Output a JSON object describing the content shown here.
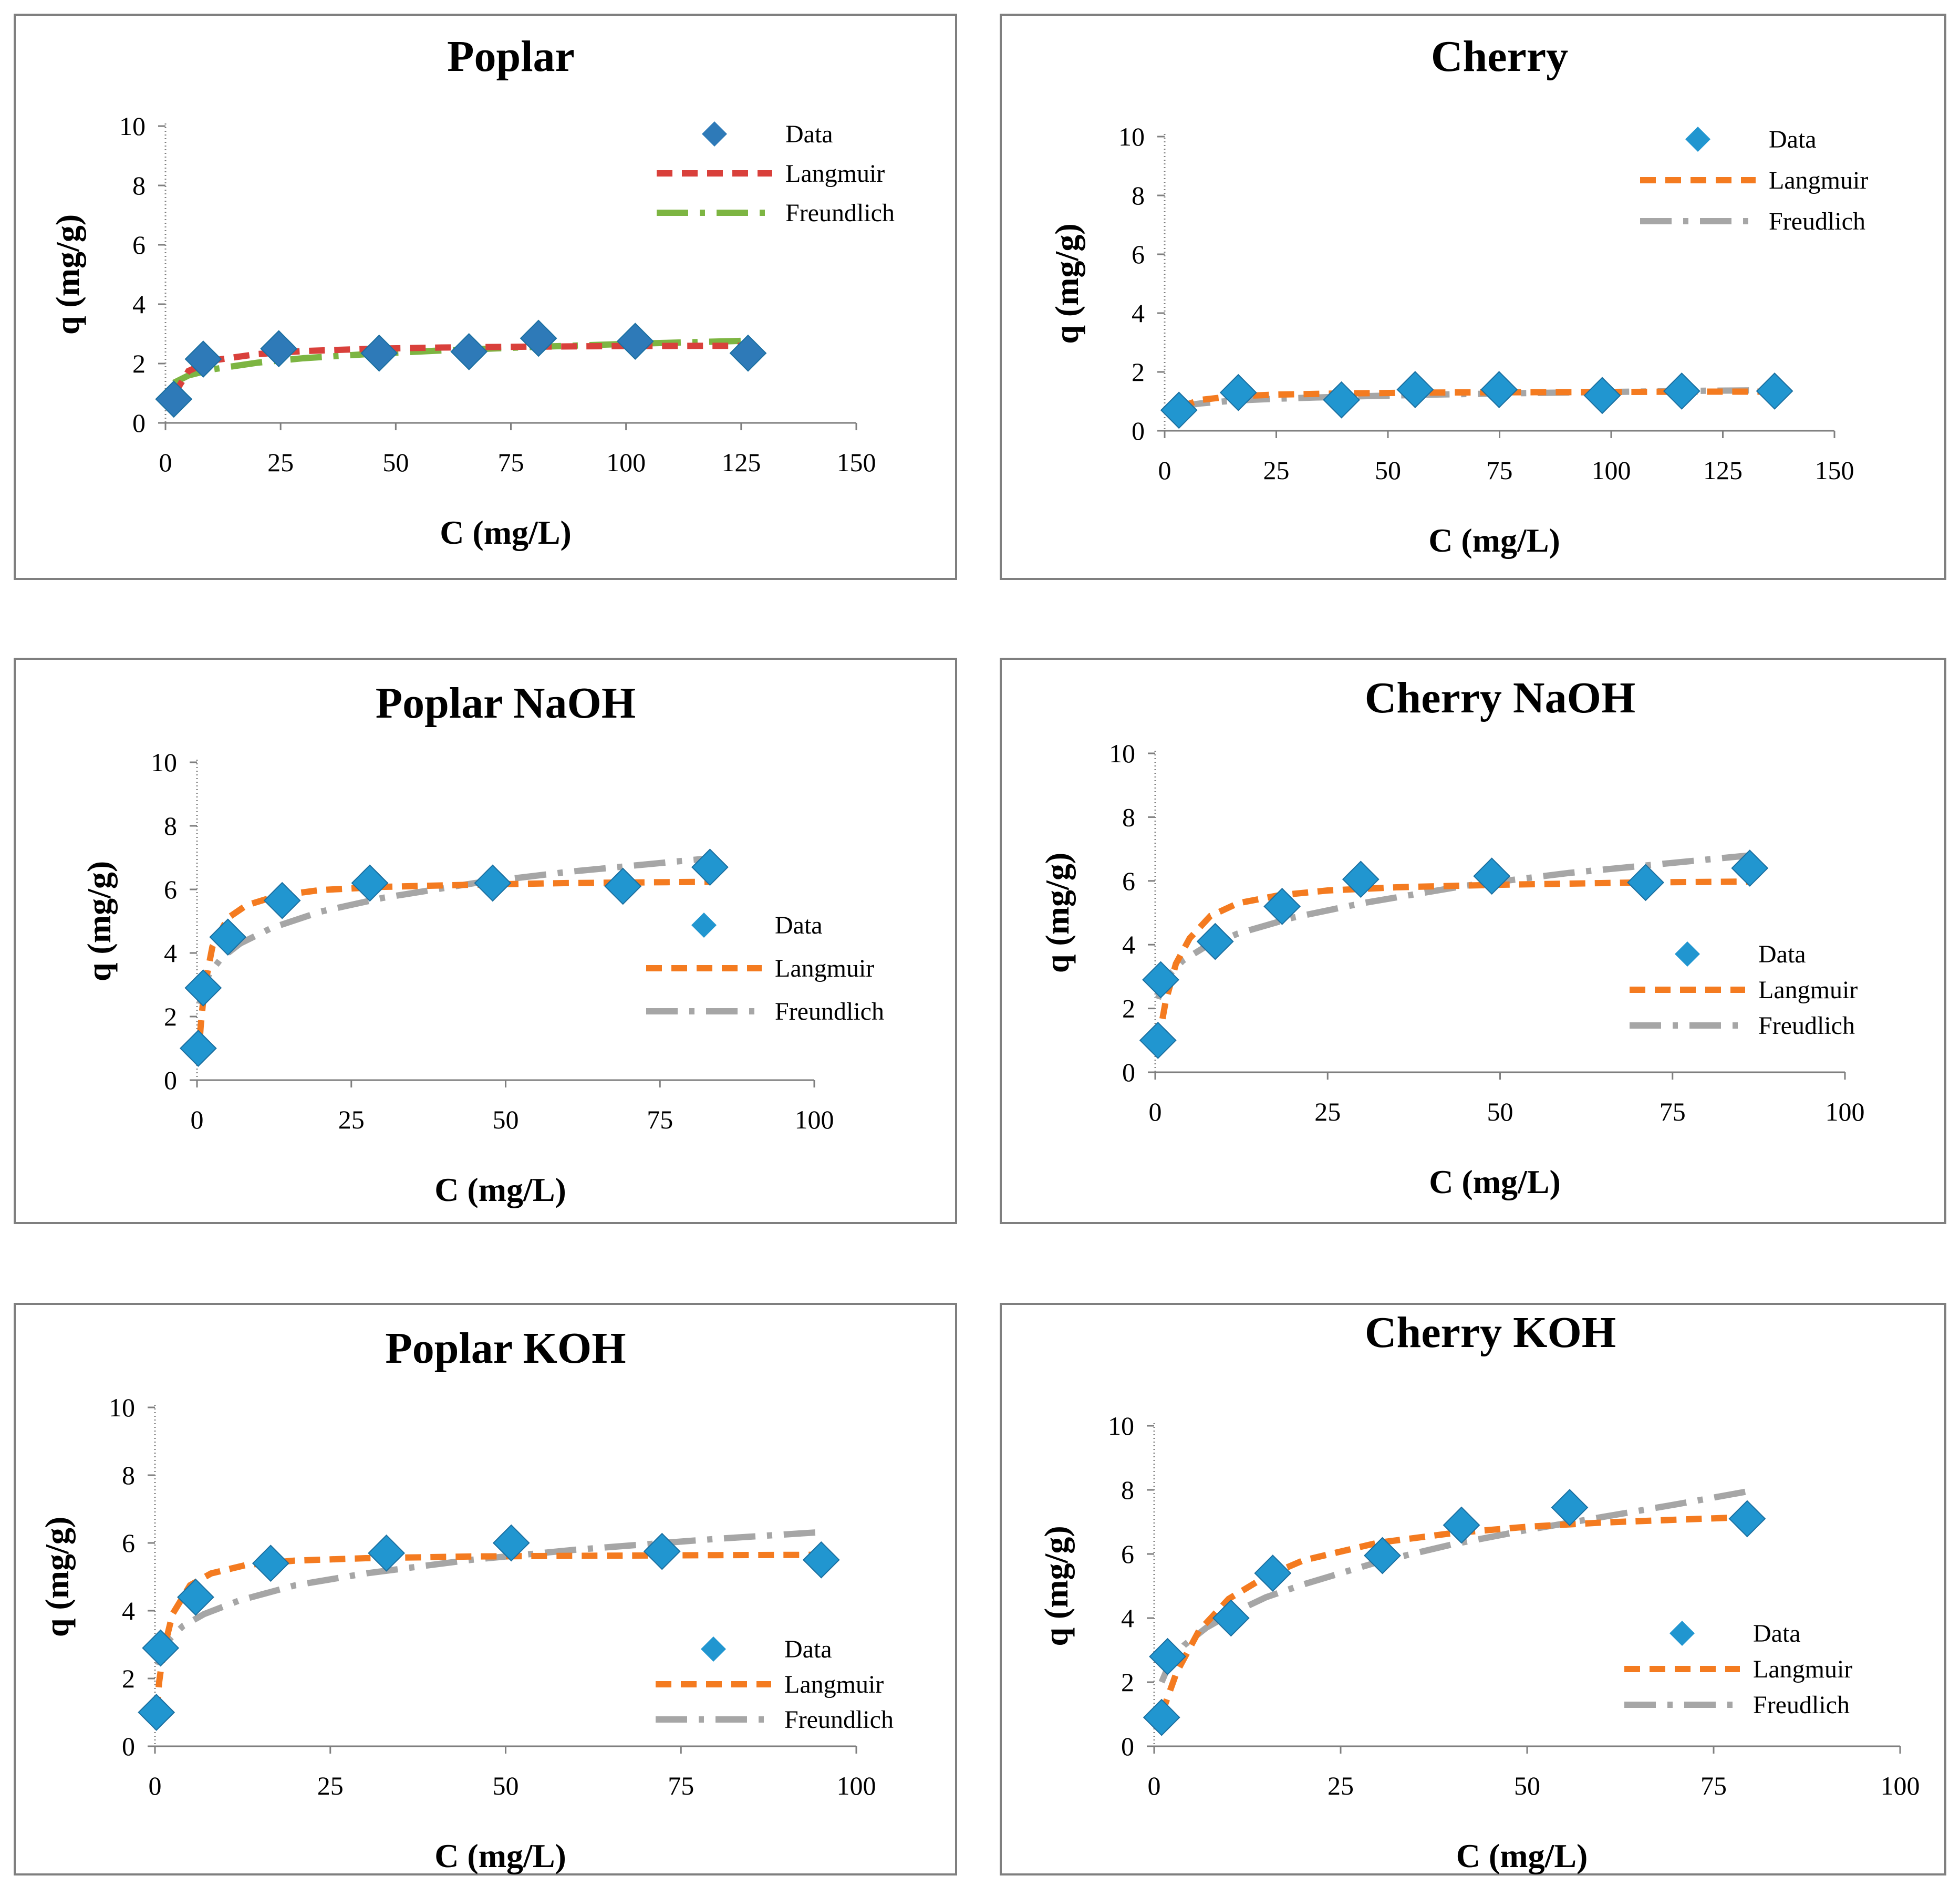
{
  "colors": {
    "data_marker": "#2196d0",
    "data_marker_dark": "#2e7ab8",
    "orange": "#f47b20",
    "gray": "#a6a6a6",
    "red": "#d9403b",
    "green": "#7db542",
    "frame": "#7f7f7f"
  },
  "chart_data": [
    {
      "id": "poplar",
      "type": "scatter",
      "title": "Poplar",
      "xlabel": "C (mg/L)",
      "ylabel": "q (mg/g)",
      "xlim": [
        0,
        150
      ],
      "ylim": [
        0,
        10
      ],
      "x_ticks": [
        "0",
        "25",
        "50",
        "75",
        "100",
        "125",
        "150"
      ],
      "y_ticks": [
        "0",
        "2",
        "4",
        "6",
        "8",
        "10"
      ],
      "legend": [
        "Data",
        "Langmuir",
        "Freundlich"
      ],
      "marker_color": "#2e7ab8",
      "langmuir_color": "#d9403b",
      "freundlich_color": "#7db542",
      "data": {
        "x": [
          1.8,
          8.2,
          24.6,
          46.4,
          65.9,
          81.0,
          102.0,
          126.5
        ],
        "y": [
          0.8,
          2.15,
          2.5,
          2.35,
          2.4,
          2.85,
          2.75,
          2.35
        ]
      },
      "langmuir": {
        "x": [
          1.8,
          5,
          10,
          20,
          30,
          45,
          60,
          80,
          100,
          126.5
        ],
        "y": [
          0.95,
          1.75,
          2.1,
          2.32,
          2.42,
          2.5,
          2.54,
          2.57,
          2.59,
          2.6
        ]
      },
      "freundlich": {
        "x": [
          1.8,
          5,
          10,
          20,
          30,
          45,
          60,
          80,
          100,
          126.5
        ],
        "y": [
          1.35,
          1.6,
          1.8,
          2.03,
          2.18,
          2.33,
          2.44,
          2.56,
          2.66,
          2.77
        ]
      }
    },
    {
      "id": "cherry",
      "type": "scatter",
      "title": "Cherry",
      "xlabel": "C (mg/L)",
      "ylabel": "q (mg/g)",
      "xlim": [
        0,
        150
      ],
      "ylim": [
        0,
        10
      ],
      "x_ticks": [
        "0",
        "25",
        "50",
        "75",
        "100",
        "125",
        "150"
      ],
      "y_ticks": [
        "0",
        "2",
        "4",
        "6",
        "8",
        "10"
      ],
      "legend": [
        "Data",
        "Langmuir",
        "Freudlich"
      ],
      "marker_color": "#2196d0",
      "langmuir_color": "#f47b20",
      "freundlich_color": "#a6a6a6",
      "data": {
        "x": [
          3.2,
          16.5,
          39.6,
          56.1,
          74.9,
          98.0,
          115.8,
          136.6
        ],
        "y": [
          0.7,
          1.3,
          1.05,
          1.4,
          1.4,
          1.2,
          1.35,
          1.35
        ]
      },
      "langmuir": {
        "x": [
          3.2,
          8,
          15,
          25,
          40,
          60,
          80,
          100,
          120,
          136.6
        ],
        "y": [
          0.8,
          1.05,
          1.17,
          1.23,
          1.27,
          1.3,
          1.31,
          1.32,
          1.33,
          1.33
        ]
      },
      "freundlich": {
        "x": [
          3.2,
          8,
          15,
          25,
          40,
          60,
          80,
          100,
          120,
          136.6
        ],
        "y": [
          0.82,
          0.93,
          1.02,
          1.09,
          1.16,
          1.23,
          1.28,
          1.32,
          1.36,
          1.38
        ]
      }
    },
    {
      "id": "poplar-naoh",
      "type": "scatter",
      "title": "Poplar NaOH",
      "xlabel": "C (mg/L)",
      "ylabel": "q (mg/g)",
      "xlim": [
        0,
        100
      ],
      "ylim": [
        0,
        10
      ],
      "x_ticks": [
        "0",
        "25",
        "50",
        "75",
        "100"
      ],
      "y_ticks": [
        "0",
        "2",
        "4",
        "6",
        "8",
        "10"
      ],
      "legend": [
        "Data",
        "Langmuir",
        "Freundlich"
      ],
      "marker_color": "#2196d0",
      "langmuir_color": "#f47b20",
      "freundlich_color": "#a6a6a6",
      "data": {
        "x": [
          0.2,
          1.0,
          5.0,
          13.8,
          28.0,
          47.9,
          69.0,
          83.1
        ],
        "y": [
          1.0,
          2.9,
          4.5,
          5.65,
          6.2,
          6.2,
          6.1,
          6.7
        ]
      },
      "langmuir": {
        "x": [
          0.2,
          0.6,
          1.2,
          2.5,
          5,
          8,
          13,
          20,
          30,
          45,
          60,
          83.1
        ],
        "y": [
          0.6,
          1.7,
          2.9,
          4.2,
          5.1,
          5.5,
          5.8,
          5.98,
          6.08,
          6.15,
          6.2,
          6.24
        ]
      },
      "freundlich": {
        "x": [
          0.4,
          1,
          2,
          4,
          7,
          12,
          20,
          30,
          45,
          60,
          83.1
        ],
        "y": [
          2.4,
          2.92,
          3.35,
          3.85,
          4.3,
          4.78,
          5.3,
          5.73,
          6.2,
          6.55,
          6.98
        ]
      }
    },
    {
      "id": "cherry-naoh",
      "type": "scatter",
      "title": "Cherry NaOH",
      "xlabel": "C (mg/L)",
      "ylabel": "q (mg/g)",
      "xlim": [
        0,
        100
      ],
      "ylim": [
        0,
        10
      ],
      "x_ticks": [
        "0",
        "25",
        "50",
        "75",
        "100"
      ],
      "y_ticks": [
        "0",
        "2",
        "4",
        "6",
        "8",
        "10"
      ],
      "legend": [
        "Data",
        "Langmuir",
        "Freudlich"
      ],
      "marker_color": "#2196d0",
      "langmuir_color": "#f47b20",
      "freundlich_color": "#a6a6a6",
      "data": {
        "x": [
          0.4,
          0.8,
          8.7,
          18.4,
          29.8,
          48.8,
          71.1,
          86.2
        ],
        "y": [
          1.0,
          2.9,
          4.1,
          5.2,
          6.05,
          6.15,
          5.95,
          6.4
        ]
      },
      "langmuir": {
        "x": [
          0.4,
          1.5,
          3,
          5,
          8,
          12,
          18,
          25,
          35,
          50,
          70,
          86.2
        ],
        "y": [
          0.9,
          2.2,
          3.4,
          4.2,
          4.9,
          5.3,
          5.55,
          5.7,
          5.8,
          5.88,
          5.95,
          5.98
        ]
      },
      "freundlich": {
        "x": [
          0.4,
          1,
          2,
          4,
          7,
          12,
          20,
          30,
          45,
          60,
          86.2
        ],
        "y": [
          2.3,
          2.7,
          3.05,
          3.5,
          3.9,
          4.35,
          4.85,
          5.3,
          5.85,
          6.25,
          6.8
        ]
      }
    },
    {
      "id": "poplar-koh",
      "type": "scatter",
      "title": "Poplar KOH",
      "xlabel": "C (mg/L)",
      "ylabel": "q (mg/g)",
      "xlim": [
        0,
        100
      ],
      "ylim": [
        0,
        10
      ],
      "x_ticks": [
        "0",
        "25",
        "50",
        "75",
        "100"
      ],
      "y_ticks": [
        "0",
        "2",
        "4",
        "6",
        "8",
        "10"
      ],
      "legend": [
        "Data",
        "Langmuir",
        "Freundlich"
      ],
      "marker_color": "#2196d0",
      "langmuir_color": "#f47b20",
      "freundlich_color": "#a6a6a6",
      "data": {
        "x": [
          0.2,
          0.8,
          5.8,
          16.5,
          33.0,
          50.8,
          72.3,
          95.0
        ],
        "y": [
          1.0,
          2.9,
          4.4,
          5.4,
          5.7,
          6.0,
          5.75,
          5.5
        ]
      },
      "langmuir": {
        "x": [
          0.2,
          0.6,
          1.2,
          2.5,
          5,
          8,
          13,
          20,
          30,
          45,
          60,
          80,
          95
        ],
        "y": [
          1.0,
          1.9,
          2.8,
          3.9,
          4.75,
          5.1,
          5.35,
          5.48,
          5.55,
          5.6,
          5.62,
          5.64,
          5.65
        ]
      },
      "freundlich": {
        "x": [
          0.4,
          1,
          2,
          4,
          7,
          12,
          20,
          30,
          45,
          60,
          80,
          95
        ],
        "y": [
          2.4,
          2.8,
          3.15,
          3.55,
          3.9,
          4.3,
          4.75,
          5.1,
          5.5,
          5.8,
          6.12,
          6.32
        ]
      }
    },
    {
      "id": "cherry-koh",
      "type": "scatter",
      "title": "Cherry KOH",
      "xlabel": "C (mg/L)",
      "ylabel": "q (mg/g)",
      "xlim": [
        0,
        100
      ],
      "ylim": [
        0,
        10
      ],
      "x_ticks": [
        "0",
        "25",
        "50",
        "75",
        "100"
      ],
      "y_ticks": [
        "0",
        "2",
        "4",
        "6",
        "8",
        "10"
      ],
      "legend": [
        "Data",
        "Langmuir",
        "Freudlich"
      ],
      "marker_color": "#2196d0",
      "langmuir_color": "#f47b20",
      "freundlich_color": "#a6a6a6",
      "data": {
        "x": [
          1.0,
          1.8,
          10.3,
          15.9,
          30.6,
          41.2,
          55.7,
          79.5
        ],
        "y": [
          0.9,
          2.8,
          4.0,
          5.4,
          5.95,
          6.9,
          7.45,
          7.1
        ]
      },
      "langmuir": {
        "x": [
          1.0,
          3,
          6,
          10,
          15,
          20,
          30,
          40,
          50,
          60,
          70,
          79.5
        ],
        "y": [
          1.0,
          2.3,
          3.6,
          4.6,
          5.3,
          5.8,
          6.35,
          6.65,
          6.85,
          6.98,
          7.07,
          7.15
        ]
      },
      "freundlich": {
        "x": [
          1.0,
          2,
          4,
          7,
          10,
          15,
          20,
          30,
          40,
          50,
          60,
          70,
          79.5
        ],
        "y": [
          2.0,
          2.55,
          3.15,
          3.7,
          4.1,
          4.65,
          5.05,
          5.75,
          6.3,
          6.75,
          7.15,
          7.55,
          7.95
        ]
      }
    }
  ]
}
